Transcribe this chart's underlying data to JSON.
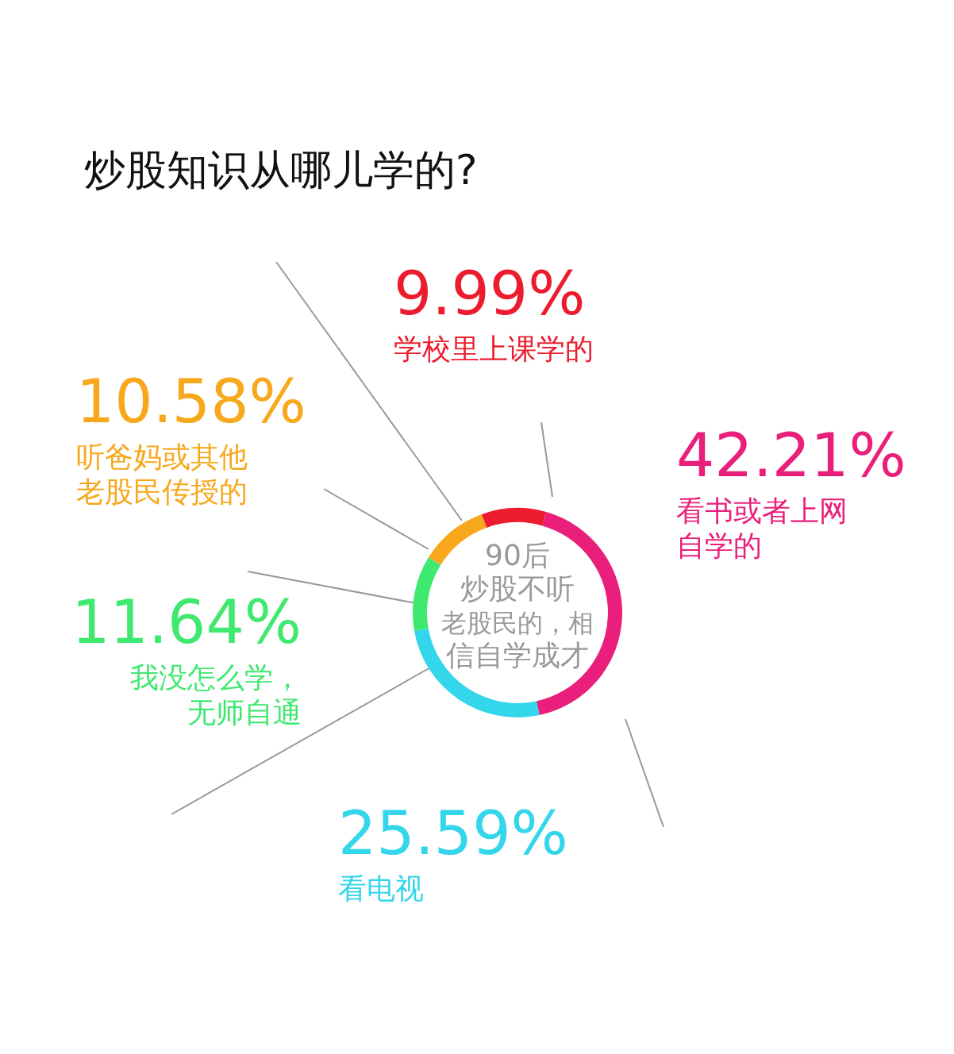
{
  "chart_data": {
    "type": "donut",
    "title": "炒股知识从哪儿学的?",
    "categories": [
      "学校里上课学的",
      "看书或者上网自学的",
      "看电视",
      "我没怎么学，无师自通",
      "听爸妈或其他老股民传授的"
    ],
    "values": [
      9.99,
      42.21,
      25.59,
      11.64,
      10.58
    ],
    "value_labels": [
      "9.99%",
      "42.21%",
      "25.59%",
      "11.64%",
      "10.58%"
    ],
    "colors": [
      "#ec1c2e",
      "#ea1f7b",
      "#33d6ea",
      "#3fe86f",
      "#f7a81c"
    ],
    "annotations": [
      "90后炒股不听老股民的，相信自学成才"
    ]
  }
}
